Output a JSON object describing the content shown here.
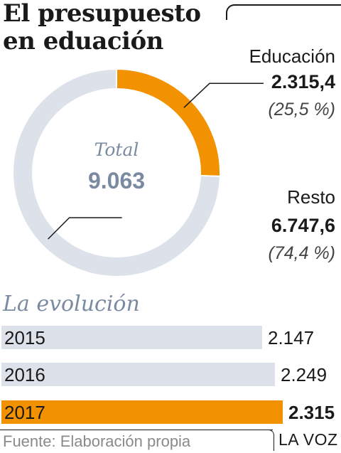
{
  "title": "El presupuesto en eduación",
  "chart_data": [
    {
      "type": "pie",
      "title": "El presupuesto en eduación",
      "center_label": "Total",
      "center_value": "9.063",
      "total": 9063,
      "slices": [
        {
          "name": "Educación",
          "value": 2315.4,
          "value_label": "2.315,4",
          "percent": 25.5,
          "percent_label": "(25,5 %)",
          "color": "#f39200"
        },
        {
          "name": "Resto",
          "value": 6747.6,
          "value_label": "6.747,6",
          "percent": 74.4,
          "percent_label": "(74,4 %)",
          "color": "#dde1ea"
        }
      ]
    },
    {
      "type": "bar",
      "title": "La evolución",
      "categories": [
        "2015",
        "2016",
        "2017"
      ],
      "values": [
        2147,
        2249,
        2315
      ],
      "value_labels": [
        "2.147",
        "2.249",
        "2.315"
      ],
      "highlight": "2017",
      "colors": {
        "default": "#dde1ea",
        "highlight": "#f39200"
      }
    }
  ],
  "footer": {
    "source": "Fuente: Elaboración propia",
    "brand": "LA VOZ"
  }
}
